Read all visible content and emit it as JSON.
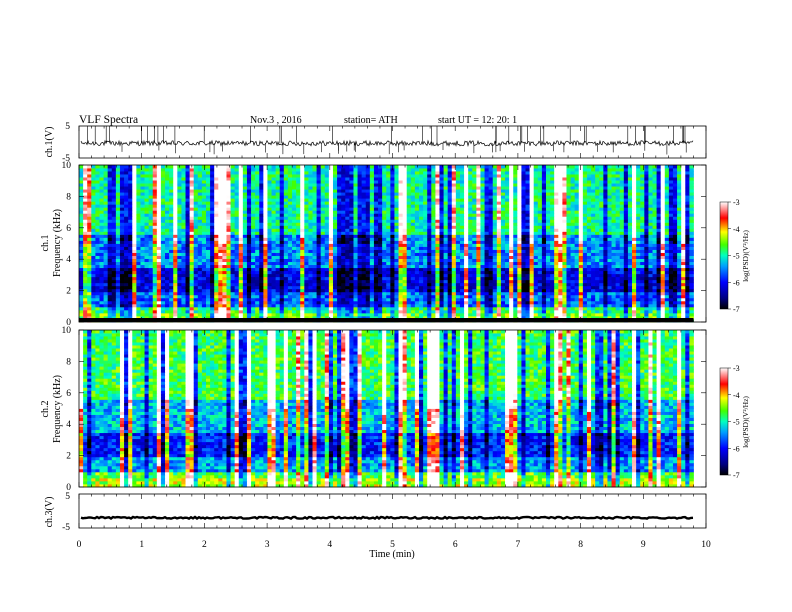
{
  "header": {
    "title": "VLF Spectra",
    "date": "Nov.3 , 2016",
    "station": "station= ATH",
    "start": "start UT = 12: 20: 1"
  },
  "chart_data": [
    {
      "type": "line",
      "panel": "ch1-waveform",
      "ylabel": "ch.1(V)",
      "ylim": [
        -5,
        5
      ],
      "yticks": [
        "5",
        "-5"
      ],
      "xlim": [
        0,
        10
      ],
      "data_end_min": 9.8,
      "baseline": -0.4,
      "color": "#000000"
    },
    {
      "type": "heatmap",
      "panel": "ch1-spectrogram",
      "ylabel": "ch.1 Frequency (kHz)",
      "ylim": [
        0,
        10
      ],
      "yticks": [
        "0",
        "2",
        "4",
        "6",
        "8",
        "10"
      ],
      "xlim": [
        0,
        10
      ],
      "data_end_min": 9.8,
      "colorbar": {
        "label": "log(PSD)(V²/Hz)",
        "range": [
          -7,
          -3
        ],
        "ticks": [
          "-3",
          "-4",
          "-5",
          "-6",
          "-7"
        ]
      }
    },
    {
      "type": "heatmap",
      "panel": "ch2-spectrogram",
      "ylabel": "ch.2 Frequency (kHz)",
      "ylim": [
        0,
        10
      ],
      "yticks": [
        "0",
        "2",
        "4",
        "6",
        "8",
        "10"
      ],
      "xlim": [
        0,
        10
      ],
      "data_end_min": 9.8,
      "colorbar": {
        "label": "log(PSD)(V²/Hz)",
        "range": [
          -7,
          -3
        ],
        "ticks": [
          "-3",
          "-4",
          "-5",
          "-6",
          "-7"
        ]
      }
    },
    {
      "type": "line",
      "panel": "ch3-waveform",
      "ylabel": "ch.3(V)",
      "ylim": [
        -5,
        5
      ],
      "yticks": [
        "5",
        "-5"
      ],
      "xlim": [
        0,
        10
      ],
      "data_end_min": 9.8,
      "baseline": -2.0,
      "color": "#000000"
    }
  ],
  "x_axis": {
    "label": "Time (min)",
    "ticks": [
      "0",
      "1",
      "2",
      "3",
      "4",
      "5",
      "6",
      "7",
      "8",
      "9",
      "10"
    ]
  },
  "colormap": [
    "#000080",
    "#0000ff",
    "#0096ff",
    "#00ffff",
    "#00ff80",
    "#80ff00",
    "#ffff00",
    "#ff8000",
    "#ff0000",
    "#ffffff"
  ]
}
